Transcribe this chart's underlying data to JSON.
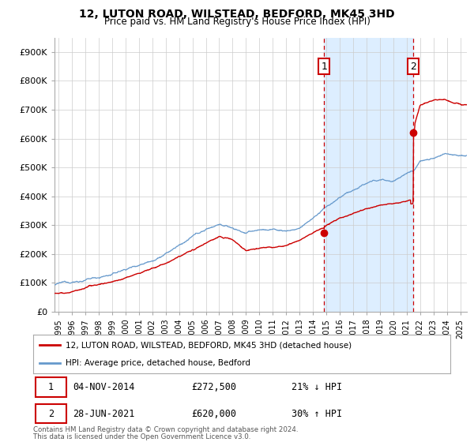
{
  "title": "12, LUTON ROAD, WILSTEAD, BEDFORD, MK45 3HD",
  "subtitle": "Price paid vs. HM Land Registry's House Price Index (HPI)",
  "ylim": [
    0,
    950000
  ],
  "xlim_start": 1994.7,
  "xlim_end": 2025.5,
  "yticks": [
    0,
    100000,
    200000,
    300000,
    400000,
    500000,
    600000,
    700000,
    800000,
    900000
  ],
  "ytick_labels": [
    "£0",
    "£100K",
    "£200K",
    "£300K",
    "£400K",
    "£500K",
    "£600K",
    "£700K",
    "£800K",
    "£900K"
  ],
  "xticks": [
    1995,
    1996,
    1997,
    1998,
    1999,
    2000,
    2001,
    2002,
    2003,
    2004,
    2005,
    2006,
    2007,
    2008,
    2009,
    2010,
    2011,
    2012,
    2013,
    2014,
    2015,
    2016,
    2017,
    2018,
    2019,
    2020,
    2021,
    2022,
    2023,
    2024,
    2025
  ],
  "hpi_color": "#6699cc",
  "price_color": "#cc0000",
  "sale1_date": 2014.84,
  "sale1_price": 272500,
  "sale1_label": "1",
  "sale2_date": 2021.49,
  "sale2_price": 620000,
  "sale2_label": "2",
  "shade_start": 2014.84,
  "shade_end": 2021.49,
  "legend_line1": "12, LUTON ROAD, WILSTEAD, BEDFORD, MK45 3HD (detached house)",
  "legend_line2": "HPI: Average price, detached house, Bedford",
  "table_row1": [
    "1",
    "04-NOV-2014",
    "£272,500",
    "21% ↓ HPI"
  ],
  "table_row2": [
    "2",
    "28-JUN-2021",
    "£620,000",
    "30% ↑ HPI"
  ],
  "footnote1": "Contains HM Land Registry data © Crown copyright and database right 2024.",
  "footnote2": "This data is licensed under the Open Government Licence v3.0.",
  "background_color": "#ffffff",
  "grid_color": "#cccccc",
  "shade_color": "#ddeeff"
}
